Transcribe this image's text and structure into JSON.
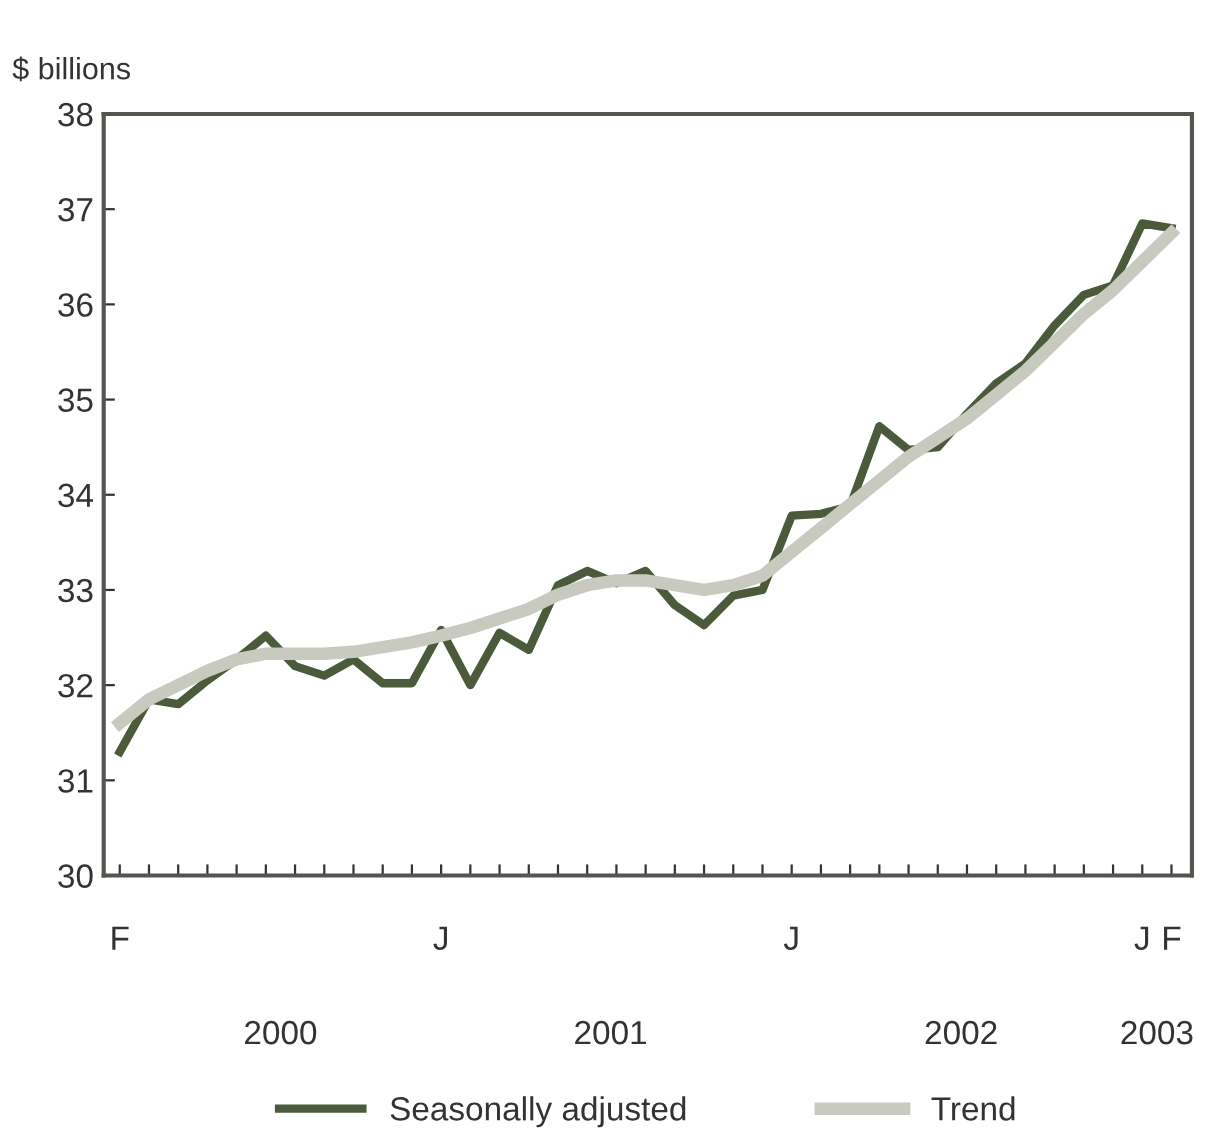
{
  "chart_data": {
    "type": "line",
    "ylabel": "$ billions",
    "categories": [
      "F",
      null,
      null,
      null,
      null,
      null,
      null,
      null,
      null,
      null,
      null,
      "J",
      null,
      null,
      null,
      null,
      null,
      null,
      null,
      null,
      null,
      null,
      null,
      "J",
      null,
      null,
      null,
      null,
      null,
      null,
      null,
      null,
      null,
      null,
      null,
      "J",
      "F"
    ],
    "series": [
      {
        "name": "Seasonally adjusted",
        "color": "#4a5a3a",
        "values": [
          31.3,
          31.85,
          31.8,
          32.05,
          32.27,
          32.52,
          32.2,
          32.1,
          32.27,
          32.02,
          32.02,
          32.58,
          32.0,
          32.55,
          32.37,
          33.05,
          33.2,
          33.07,
          33.2,
          32.84,
          32.63,
          32.94,
          33.0,
          33.78,
          33.8,
          33.88,
          34.72,
          34.47,
          34.5,
          34.85,
          35.17,
          35.38,
          35.78,
          36.1,
          36.2,
          36.85,
          36.8
        ]
      },
      {
        "name": "Trend",
        "color": "#c8cac0",
        "values": [
          31.6,
          31.85,
          32.0,
          32.15,
          32.27,
          32.33,
          32.33,
          32.33,
          32.35,
          32.4,
          32.45,
          32.52,
          32.6,
          32.7,
          32.8,
          32.95,
          33.05,
          33.1,
          33.1,
          33.05,
          33.0,
          33.05,
          33.15,
          33.4,
          33.65,
          33.9,
          34.15,
          34.4,
          34.6,
          34.8,
          35.05,
          35.3,
          35.6,
          35.9,
          36.15,
          36.45,
          36.75
        ]
      }
    ],
    "annotations": [
      "2000",
      "2001",
      "2002",
      "2003"
    ],
    "ylim": [
      30,
      38
    ],
    "yticks": [
      30,
      31,
      32,
      33,
      34,
      35,
      36,
      37,
      38
    ],
    "grid": false,
    "legend": "bottom",
    "marker": "none",
    "line_style": "solid"
  }
}
